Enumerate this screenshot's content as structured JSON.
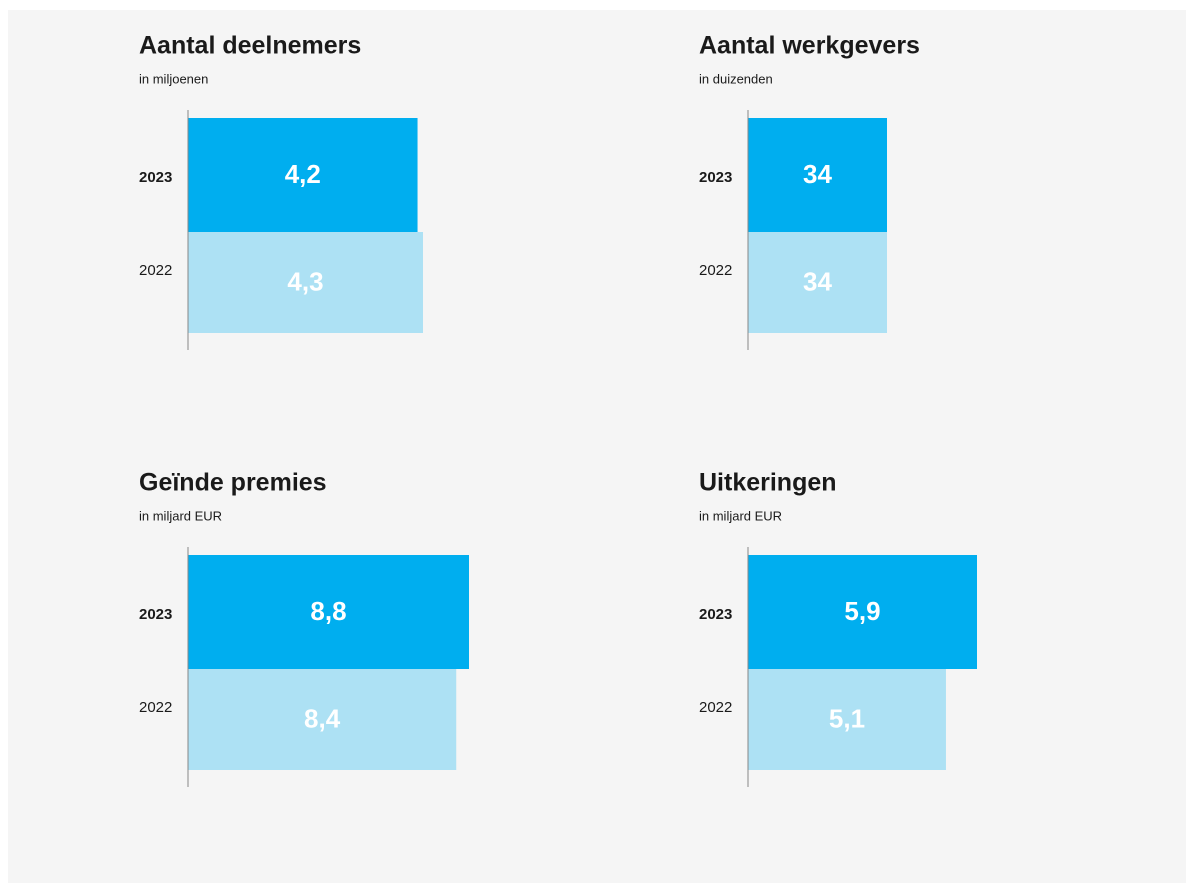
{
  "chart_data": [
    {
      "type": "bar",
      "orientation": "horizontal",
      "title": "Aantal deelnemers",
      "subtitle": "in miljoenen",
      "categories": [
        "2023",
        "2022"
      ],
      "values": [
        4.2,
        4.3
      ],
      "value_labels": [
        "4,2",
        "4,3"
      ],
      "colors": [
        "#00aeef",
        "#ade1f4"
      ]
    },
    {
      "type": "bar",
      "orientation": "horizontal",
      "title": "Aantal werkgevers",
      "subtitle": "in duizenden",
      "categories": [
        "2023",
        "2022"
      ],
      "values": [
        34,
        34
      ],
      "value_labels": [
        "34",
        "34"
      ],
      "colors": [
        "#00aeef",
        "#ade1f4"
      ]
    },
    {
      "type": "bar",
      "orientation": "horizontal",
      "title": "Geïnde premies",
      "subtitle": "in miljard EUR",
      "categories": [
        "2023",
        "2022"
      ],
      "values": [
        8.8,
        8.4
      ],
      "value_labels": [
        "8,8",
        "8,4"
      ],
      "colors": [
        "#00aeef",
        "#ade1f4"
      ]
    },
    {
      "type": "bar",
      "orientation": "horizontal",
      "title": "Uitkeringen",
      "subtitle": "in miljard EUR",
      "categories": [
        "2023",
        "2022"
      ],
      "values": [
        5.9,
        5.1
      ],
      "value_labels": [
        "5,9",
        "5,1"
      ],
      "colors": [
        "#00aeef",
        "#ade1f4"
      ]
    }
  ]
}
